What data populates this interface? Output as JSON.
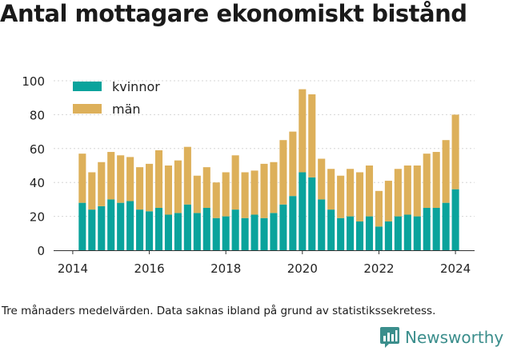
{
  "title": "Antal mottagare ekonomiskt bistånd",
  "note": "Tre månaders medelvärden. Data saknas ibland på grund av statistikssekretess.",
  "brand": {
    "name": "Newsworthy",
    "logo_icon": "newsworthy-chat-bars-icon"
  },
  "colors": {
    "kvinnor": "#0aa39c",
    "man": "#ddb05a",
    "brand": "#3b8e8c"
  },
  "chart_data": {
    "type": "bar",
    "stacked": true,
    "title": "Antal mottagare ekonomiskt bistånd",
    "xlabel": "",
    "ylabel": "",
    "ylim": [
      0,
      100
    ],
    "yticks": [
      "0",
      "20",
      "40",
      "60",
      "80",
      "100"
    ],
    "xticks": [
      "2014",
      "2016",
      "2018",
      "2020",
      "2022",
      "2024"
    ],
    "xtick_values": [
      2014,
      2016,
      2018,
      2020,
      2022,
      2024
    ],
    "xlim": [
      2013.5,
      2024.5
    ],
    "grid": true,
    "legend_position": "top-left",
    "x": [
      2014.25,
      2014.5,
      2014.75,
      2015.0,
      2015.25,
      2015.5,
      2015.75,
      2016.0,
      2016.25,
      2016.5,
      2016.75,
      2017.0,
      2017.25,
      2017.5,
      2017.75,
      2018.0,
      2018.25,
      2018.5,
      2018.75,
      2019.0,
      2019.25,
      2019.5,
      2019.75,
      2020.0,
      2020.25,
      2020.5,
      2020.75,
      2021.0,
      2021.25,
      2021.5,
      2021.75,
      2022.0,
      2022.25,
      2022.5,
      2022.75,
      2023.0,
      2023.25,
      2023.5,
      2023.75,
      2024.0
    ],
    "series": [
      {
        "name": "kvinnor",
        "values": [
          28,
          24,
          26,
          30,
          28,
          29,
          24,
          23,
          25,
          21,
          22,
          27,
          22,
          25,
          19,
          20,
          24,
          19,
          21,
          19,
          22,
          27,
          32,
          46,
          43,
          30,
          24,
          19,
          20,
          17,
          20,
          14,
          17,
          20,
          21,
          20,
          25,
          25,
          28,
          36
        ]
      },
      {
        "name": "män",
        "values": [
          29,
          22,
          26,
          28,
          28,
          26,
          25,
          28,
          34,
          29,
          31,
          34,
          22,
          24,
          21,
          26,
          32,
          27,
          26,
          32,
          30,
          38,
          38,
          49,
          49,
          24,
          24,
          25,
          28,
          29,
          30,
          21,
          24,
          28,
          29,
          30,
          32,
          33,
          37,
          44
        ]
      }
    ]
  }
}
